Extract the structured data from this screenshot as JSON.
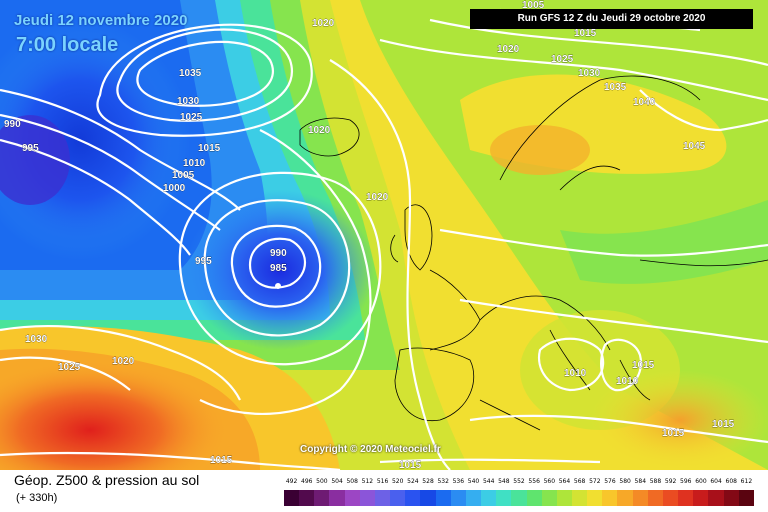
{
  "header": {
    "date": "Jeudi 12 novembre 2020",
    "time": "7:00 locale",
    "run": "Run GFS 12 Z du Jeudi 29 octobre 2020"
  },
  "copyright": "Copyright © 2020 Meteociel.fr",
  "isobar_labels": [
    "990",
    "995",
    "1035",
    "1030",
    "1025",
    "1015",
    "1010",
    "1005",
    "1000",
    "995",
    "1020",
    "1020",
    "1020",
    "1025",
    "1030",
    "1035",
    "1040",
    "1045",
    "1005",
    "1015",
    "990",
    "985",
    "1020",
    "1030",
    "1025",
    "1020",
    "1015",
    "1015",
    "1010",
    "1010",
    "1015",
    "1015",
    "1015"
  ],
  "footer": {
    "title": "Géop. Z500 & pression au sol",
    "lead": "(+ 330h)"
  },
  "legend": {
    "ticks": [
      "492",
      "496",
      "500",
      "504",
      "508",
      "512",
      "516",
      "520",
      "524",
      "528",
      "532",
      "536",
      "540",
      "544",
      "548",
      "552",
      "556",
      "560",
      "564",
      "568",
      "572",
      "576",
      "580",
      "584",
      "588",
      "592",
      "596",
      "600",
      "604",
      "608",
      "612"
    ],
    "colors": [
      "#3a0033",
      "#520a4d",
      "#6e1b73",
      "#8a2ea0",
      "#9c46c4",
      "#8b55d9",
      "#6d61e6",
      "#4a60ee",
      "#2a53f0",
      "#1749e6",
      "#1b6bf0",
      "#2b8cf2",
      "#35aef0",
      "#3ccde5",
      "#40e0c4",
      "#4ae39a",
      "#5fe46e",
      "#86e44e",
      "#aee53a",
      "#d3e333",
      "#f1df30",
      "#f8c62b",
      "#f7a828",
      "#f48a26",
      "#f06a24",
      "#ea4c22",
      "#df3220",
      "#c81c1c",
      "#a8101a",
      "#830915",
      "#5a0410"
    ]
  }
}
